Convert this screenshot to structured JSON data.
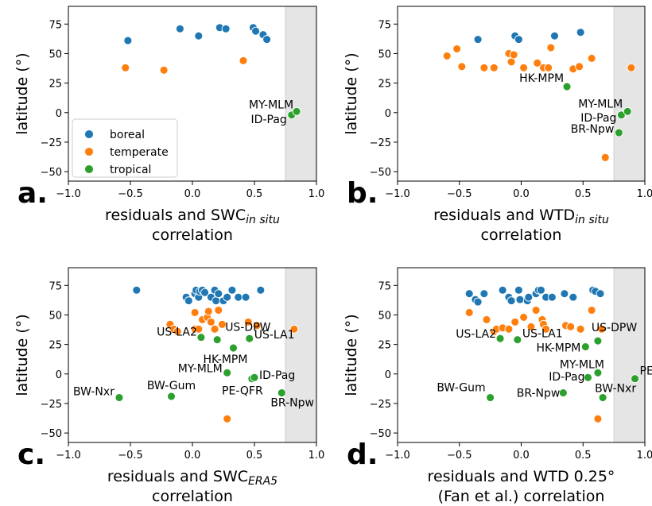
{
  "colors": {
    "boreal": "#1f77b4",
    "temperate": "#ff7f0e",
    "tropical": "#2ca02c",
    "shade": "#e5e5e5"
  },
  "legend": {
    "placement": "lower-left of panel a",
    "items": [
      "boreal",
      "temperate",
      "tropical"
    ]
  },
  "chart_data": [
    {
      "type": "scatter",
      "letter": "a.",
      "xlabel": "residuals and SWC",
      "xlabel_sub": "in situ",
      "xlabel_line2": "correlation",
      "ylabel": "latitude (°)",
      "xlim": [
        -1.0,
        1.0
      ],
      "ylim": [
        -58,
        90
      ],
      "xticks": [
        "−1.0",
        "−0.5",
        "0.0",
        "0.5",
        "1.0"
      ],
      "yticks": [
        "75",
        "50",
        "25",
        "0",
        "−25",
        "−50"
      ],
      "shaded_x": [
        0.75,
        1.0
      ],
      "points": {
        "boreal": [
          [
            -0.52,
            61
          ],
          [
            -0.1,
            71
          ],
          [
            0.05,
            65
          ],
          [
            0.22,
            72
          ],
          [
            0.27,
            71
          ],
          [
            0.49,
            72
          ],
          [
            0.51,
            69
          ],
          [
            0.57,
            66
          ],
          [
            0.6,
            62
          ]
        ],
        "temperate": [
          [
            -0.54,
            38
          ],
          [
            -0.23,
            36
          ],
          [
            0.41,
            44
          ]
        ],
        "tropical": [
          [
            0.8,
            -2
          ],
          [
            0.84,
            1
          ]
        ]
      },
      "labels": [
        [
          "MY-MLM",
          0.84,
          1
        ],
        [
          "ID-Pag",
          0.8,
          -2
        ]
      ]
    },
    {
      "type": "scatter",
      "letter": "b.",
      "xlabel": "residuals and WTD",
      "xlabel_sub": "in situ",
      "xlabel_line2": "correlation",
      "ylabel": "latitude (°)",
      "xlim": [
        -1.0,
        1.0
      ],
      "ylim": [
        -58,
        90
      ],
      "xticks": [
        "−1.0",
        "−0.5",
        "0.0",
        "0.5",
        "1.0"
      ],
      "yticks": [
        "75",
        "50",
        "25",
        "0",
        "−25",
        "−50"
      ],
      "shaded_x": [
        0.75,
        1.0
      ],
      "points": {
        "boreal": [
          [
            -0.35,
            62
          ],
          [
            -0.05,
            65
          ],
          [
            -0.02,
            62
          ],
          [
            0.27,
            65
          ],
          [
            0.48,
            68
          ]
        ],
        "temperate": [
          [
            -0.6,
            48
          ],
          [
            -0.52,
            54
          ],
          [
            -0.48,
            39
          ],
          [
            -0.3,
            38
          ],
          [
            -0.22,
            38
          ],
          [
            -0.1,
            50
          ],
          [
            -0.08,
            43
          ],
          [
            -0.06,
            49
          ],
          [
            0.02,
            38
          ],
          [
            0.13,
            42
          ],
          [
            0.18,
            38
          ],
          [
            0.22,
            38
          ],
          [
            0.24,
            55
          ],
          [
            0.42,
            37
          ],
          [
            0.47,
            39
          ],
          [
            0.57,
            46
          ],
          [
            0.68,
            -38
          ],
          [
            0.89,
            38
          ]
        ],
        "tropical": [
          [
            0.37,
            22
          ],
          [
            0.79,
            -17
          ],
          [
            0.81,
            -2
          ],
          [
            0.86,
            1
          ]
        ]
      },
      "labels": [
        [
          "HK-MPM",
          0.37,
          22
        ],
        [
          "MY-MLM",
          0.86,
          1
        ],
        [
          "ID-Pag",
          0.81,
          -2
        ],
        [
          "BR-Npw",
          0.79,
          -17
        ]
      ]
    },
    {
      "type": "scatter",
      "letter": "c.",
      "xlabel": "residuals and SWC",
      "xlabel_sub": "ERA5",
      "xlabel_line2": "correlation",
      "ylabel": "latitude (°)",
      "xlim": [
        -1.0,
        1.0
      ],
      "ylim": [
        -58,
        90
      ],
      "xticks": [
        "−1.0",
        "−0.5",
        "0.0",
        "0.5",
        "1.0"
      ],
      "yticks": [
        "75",
        "50",
        "25",
        "0",
        "−25",
        "−50"
      ],
      "shaded_x": [
        0.75,
        1.0
      ],
      "points": {
        "boreal": [
          [
            -0.45,
            71
          ],
          [
            -0.05,
            65
          ],
          [
            -0.03,
            62
          ],
          [
            0.02,
            68
          ],
          [
            0.03,
            71
          ],
          [
            0.05,
            65
          ],
          [
            0.06,
            70
          ],
          [
            0.08,
            71
          ],
          [
            0.1,
            69
          ],
          [
            0.15,
            65
          ],
          [
            0.18,
            71
          ],
          [
            0.19,
            62
          ],
          [
            0.21,
            68
          ],
          [
            0.25,
            62
          ],
          [
            0.28,
            65
          ],
          [
            0.32,
            71
          ],
          [
            0.37,
            65
          ],
          [
            0.43,
            65
          ],
          [
            0.55,
            71
          ]
        ],
        "temperate": [
          [
            -0.18,
            42
          ],
          [
            -0.15,
            38
          ],
          [
            -0.12,
            36
          ],
          [
            0.02,
            52
          ],
          [
            0.02,
            38
          ],
          [
            0.05,
            38
          ],
          [
            0.08,
            46
          ],
          [
            0.12,
            48
          ],
          [
            0.13,
            53
          ],
          [
            0.15,
            44
          ],
          [
            0.18,
            38
          ],
          [
            0.21,
            54
          ],
          [
            0.24,
            42
          ],
          [
            0.28,
            -38
          ],
          [
            0.45,
            44
          ],
          [
            0.52,
            41
          ],
          [
            0.82,
            38
          ]
        ],
        "tropical": [
          [
            -0.59,
            -20
          ],
          [
            -0.17,
            -19
          ],
          [
            0.07,
            31
          ],
          [
            0.2,
            29
          ],
          [
            0.28,
            1
          ],
          [
            0.33,
            22
          ],
          [
            0.46,
            30
          ],
          [
            0.48,
            -4
          ],
          [
            0.5,
            -3
          ],
          [
            0.72,
            -16
          ]
        ]
      },
      "labels": [
        [
          "BW-Nxr",
          -0.59,
          -20
        ],
        [
          "BW-Gum",
          -0.17,
          -19
        ],
        [
          "US-LA2",
          0.07,
          31
        ],
        [
          "US-DPW",
          0.2,
          29
        ],
        [
          "HK-MPM",
          0.33,
          22
        ],
        [
          "US-LA1",
          0.46,
          30
        ],
        [
          "MY-MLM",
          0.28,
          1
        ],
        [
          "ID-Pag",
          0.5,
          -3
        ],
        [
          "PE-QFR",
          0.48,
          -4
        ],
        [
          "BR-Npw",
          0.72,
          -16
        ]
      ]
    },
    {
      "type": "scatter",
      "letter": "d.",
      "xlabel": "residuals and WTD 0.25°",
      "xlabel_sub": "",
      "xlabel_line2": "(Fan et al.) correlation",
      "ylabel": "latitude (°)",
      "xlim": [
        -1.0,
        1.0
      ],
      "ylim": [
        -58,
        90
      ],
      "xticks": [
        "−1.0",
        "−0.5",
        "0.0",
        "0.5",
        "1.0"
      ],
      "yticks": [
        "75",
        "50",
        "25",
        "0",
        "−25",
        "−50"
      ],
      "shaded_x": [
        0.75,
        1.0
      ],
      "points": {
        "boreal": [
          [
            -0.42,
            68
          ],
          [
            -0.37,
            63
          ],
          [
            -0.35,
            61
          ],
          [
            -0.3,
            68
          ],
          [
            -0.15,
            71
          ],
          [
            -0.1,
            65
          ],
          [
            -0.08,
            62
          ],
          [
            -0.02,
            71
          ],
          [
            -0.01,
            63
          ],
          [
            0.05,
            62
          ],
          [
            0.06,
            65
          ],
          [
            0.12,
            68
          ],
          [
            0.14,
            71
          ],
          [
            0.16,
            71
          ],
          [
            0.2,
            65
          ],
          [
            0.25,
            65
          ],
          [
            0.35,
            68
          ],
          [
            0.42,
            65
          ],
          [
            0.58,
            71
          ],
          [
            0.6,
            70
          ],
          [
            0.64,
            68
          ]
        ],
        "temperate": [
          [
            -0.42,
            52
          ],
          [
            -0.28,
            46
          ],
          [
            -0.22,
            36
          ],
          [
            -0.2,
            38
          ],
          [
            -0.15,
            39
          ],
          [
            -0.1,
            38
          ],
          [
            -0.05,
            44
          ],
          [
            0.02,
            48
          ],
          [
            0.08,
            40
          ],
          [
            0.12,
            54
          ],
          [
            0.17,
            46
          ],
          [
            0.18,
            42
          ],
          [
            0.2,
            38
          ],
          [
            0.36,
            41
          ],
          [
            0.4,
            40
          ],
          [
            0.48,
            38
          ],
          [
            0.57,
            54
          ],
          [
            0.62,
            -38
          ],
          [
            0.65,
            38
          ]
        ],
        "tropical": [
          [
            -0.25,
            -20
          ],
          [
            -0.17,
            30
          ],
          [
            -0.03,
            29
          ],
          [
            0.34,
            -16
          ],
          [
            0.52,
            23
          ],
          [
            0.54,
            -3
          ],
          [
            0.62,
            28
          ],
          [
            0.62,
            1
          ],
          [
            0.66,
            -20
          ],
          [
            0.92,
            -4
          ]
        ]
      },
      "labels": [
        [
          "US-LA2",
          -0.17,
          30
        ],
        [
          "US-LA1",
          -0.03,
          29
        ],
        [
          "US-DPW",
          0.62,
          28
        ],
        [
          "HK-MPM",
          0.52,
          23
        ],
        [
          "MY-MLM",
          0.62,
          1
        ],
        [
          "ID-Pag",
          0.54,
          -3
        ],
        [
          "PE-QFR",
          0.92,
          -4
        ],
        [
          "BW-Gum",
          -0.25,
          -20
        ],
        [
          "BR-Npw",
          0.34,
          -16
        ],
        [
          "BW-Nxr",
          0.66,
          -20
        ]
      ]
    }
  ]
}
